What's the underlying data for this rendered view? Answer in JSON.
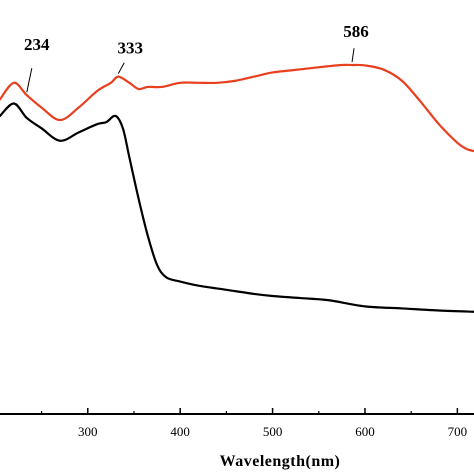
{
  "chart_data": {
    "type": "line",
    "title": "",
    "xlabel": "Wavelength(nm)",
    "ylabel": "",
    "xlim": [
      205,
      718
    ],
    "ylim": [
      0,
      1
    ],
    "grid": false,
    "x_ticks": [
      300,
      400,
      500,
      600,
      700
    ],
    "x_tick_labels": [
      "300",
      "400",
      "500",
      "600",
      "700"
    ],
    "series": [
      {
        "color": "#e8401f",
        "x": [
          205,
          220,
          234,
          250,
          270,
          290,
          310,
          325,
          333,
          345,
          355,
          365,
          380,
          400,
          420,
          440,
          460,
          480,
          500,
          520,
          540,
          560,
          575,
          586,
          600,
          620,
          640,
          660,
          680,
          700,
          710,
          718
        ],
        "y": [
          0.76,
          0.8,
          0.77,
          0.74,
          0.71,
          0.74,
          0.78,
          0.8,
          0.815,
          0.8,
          0.785,
          0.79,
          0.79,
          0.8,
          0.8,
          0.8,
          0.805,
          0.815,
          0.825,
          0.83,
          0.835,
          0.84,
          0.843,
          0.843,
          0.842,
          0.832,
          0.805,
          0.755,
          0.7,
          0.655,
          0.64,
          0.635
        ]
      },
      {
        "color": "#000000",
        "x": [
          205,
          220,
          234,
          250,
          270,
          290,
          310,
          320,
          330,
          338,
          345,
          355,
          365,
          375,
          385,
          400,
          420,
          450,
          480,
          500,
          530,
          560,
          600,
          640,
          680,
          718
        ],
        "y": [
          0.72,
          0.75,
          0.715,
          0.69,
          0.66,
          0.68,
          0.7,
          0.705,
          0.72,
          0.69,
          0.62,
          0.52,
          0.43,
          0.36,
          0.33,
          0.32,
          0.31,
          0.3,
          0.29,
          0.285,
          0.28,
          0.275,
          0.26,
          0.255,
          0.25,
          0.247
        ]
      }
    ],
    "annotations": [
      {
        "text": "234",
        "x": 234,
        "series": 0
      },
      {
        "text": "333",
        "x": 333,
        "series": 0
      },
      {
        "text": "586",
        "x": 586,
        "series": 0
      }
    ]
  }
}
